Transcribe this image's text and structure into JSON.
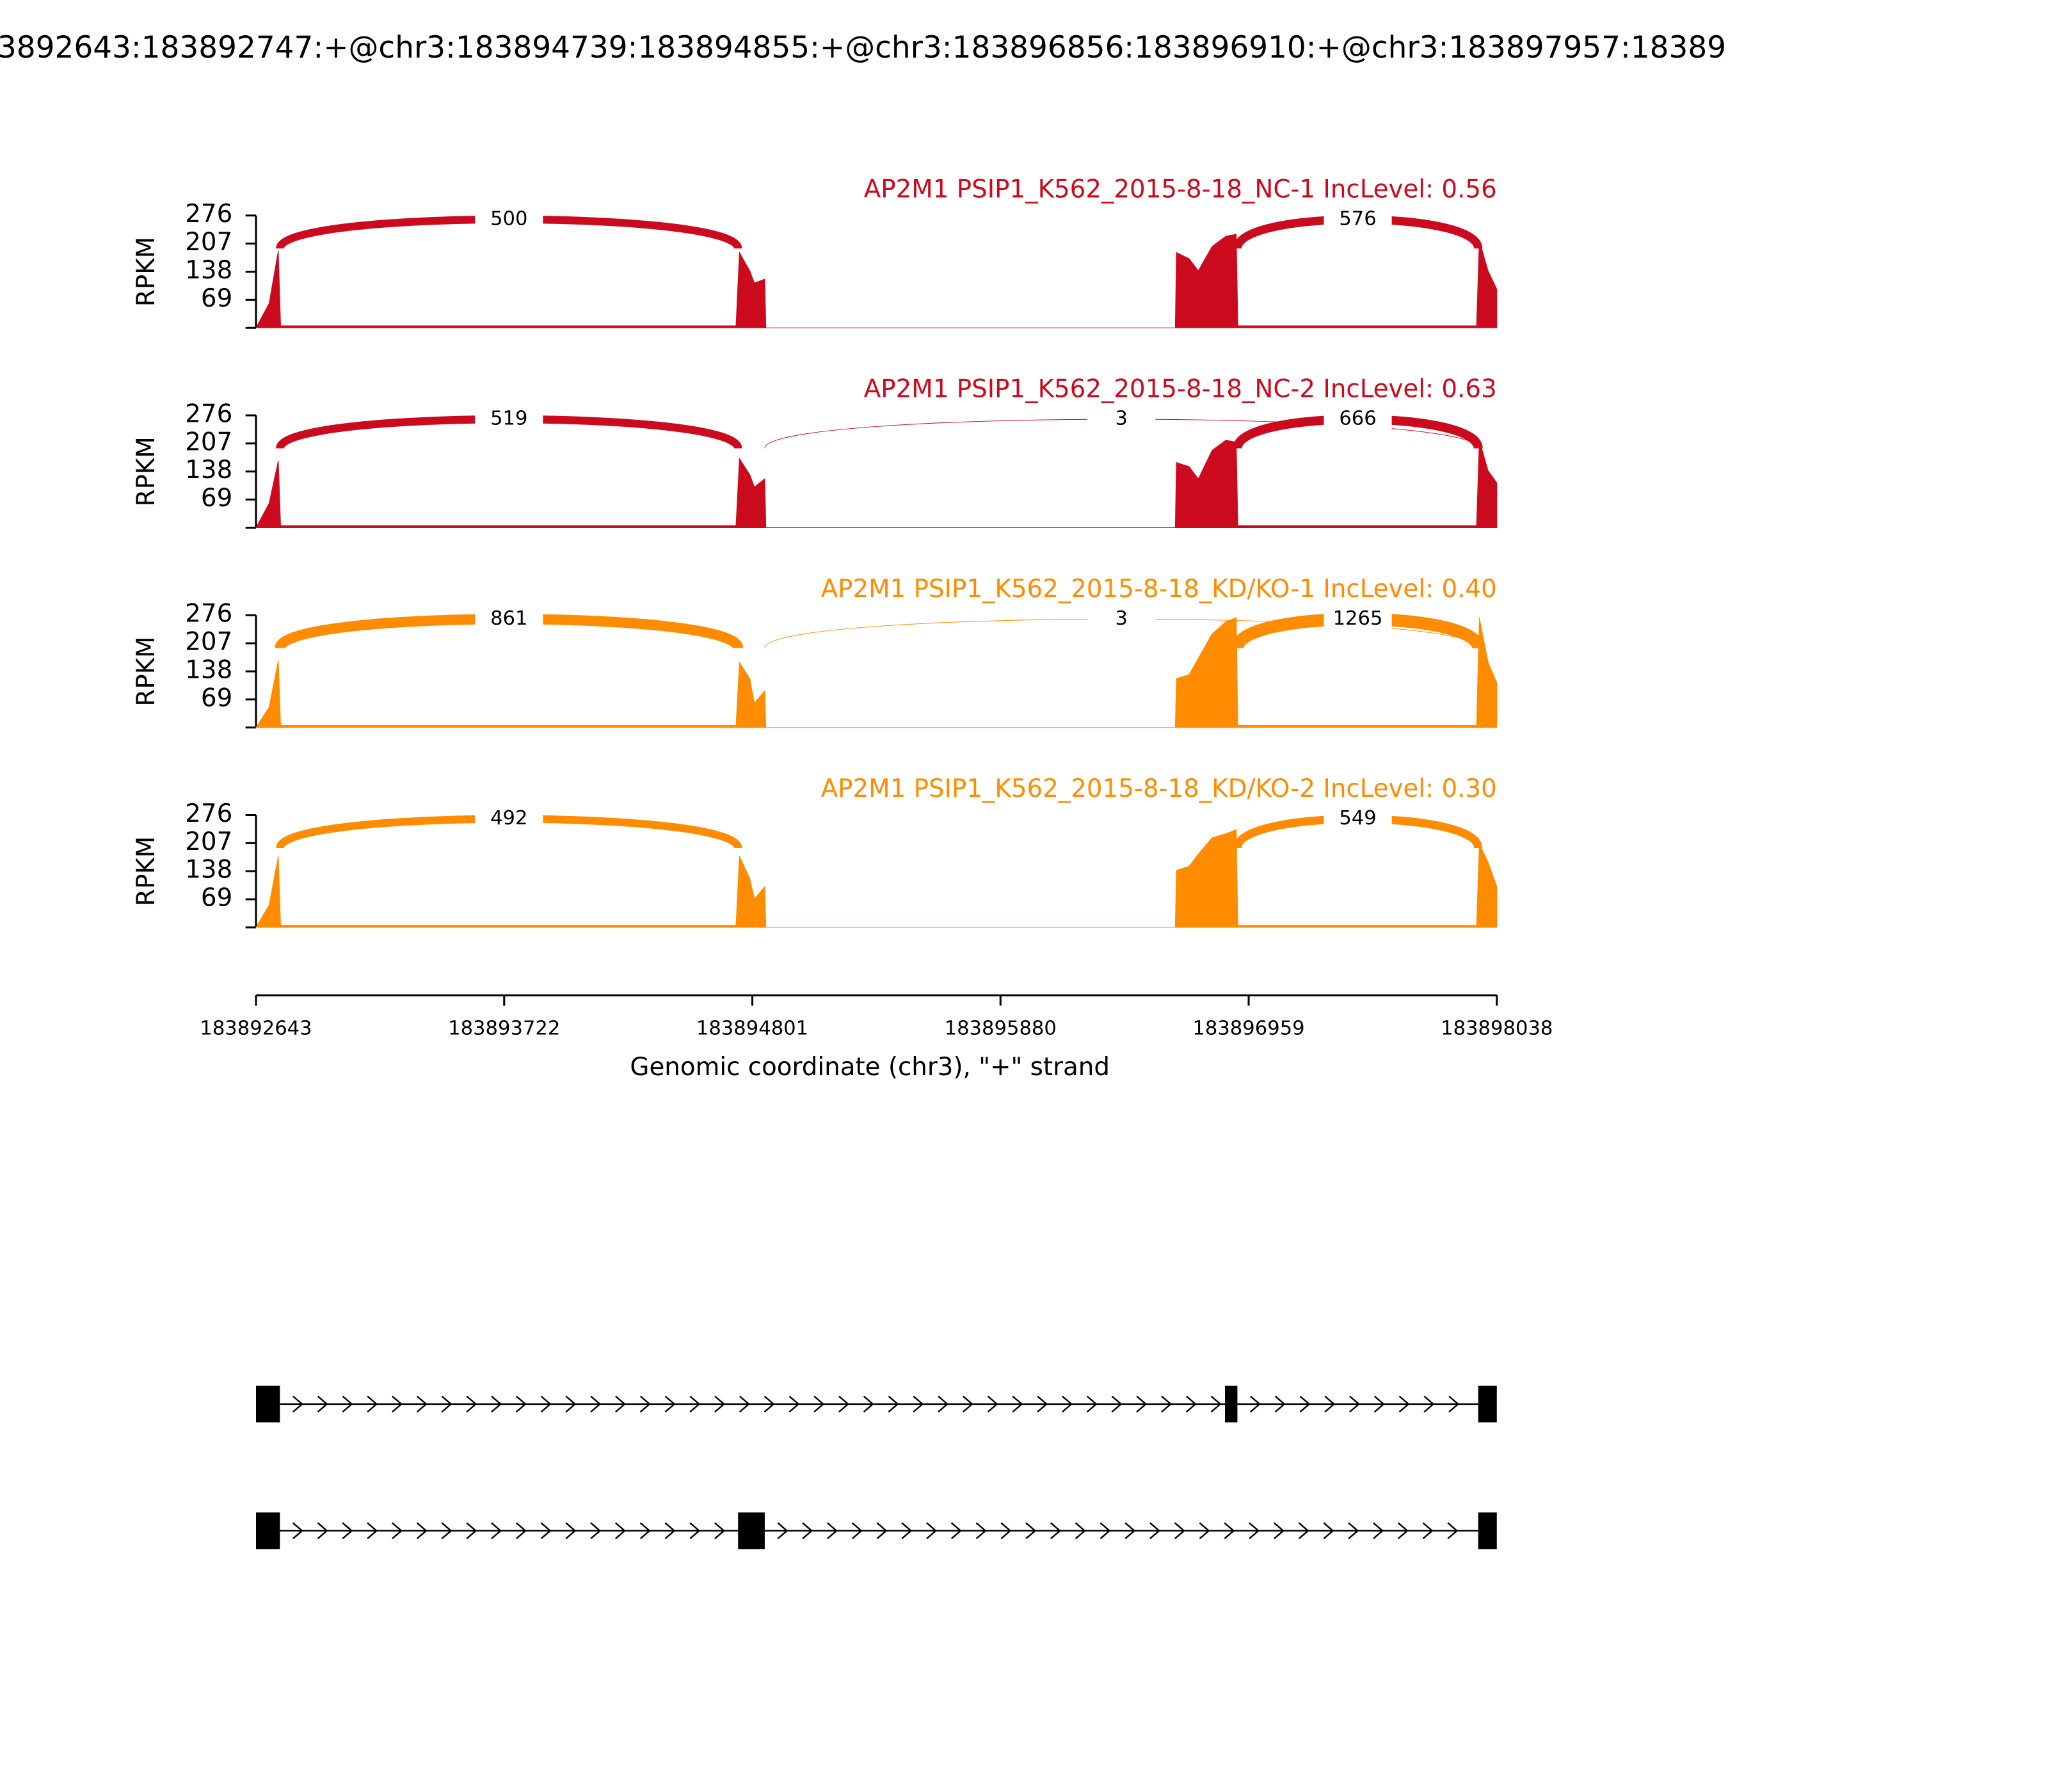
{
  "chart_data": {
    "type": "sashimi",
    "title": "3892643:183892747:+@chr3:183894739:183894855:+@chr3:183896856:183896910:+@chr3:183897957:18389",
    "xlabel": "Genomic coordinate (chr3), \"+\" strand",
    "xlim": [
      183892643,
      183898038
    ],
    "xticks": [
      183892643,
      183893722,
      183894801,
      183895880,
      183896959,
      183898038
    ],
    "coverage_x": [
      183892643,
      183892700,
      183892740,
      183892750,
      183894730,
      183894745,
      183894790,
      183894810,
      183894855,
      183894860,
      183896640,
      183896645,
      183896700,
      183896740,
      183896800,
      183896860,
      183896905,
      183896912,
      183897950,
      183897962,
      183898000,
      183898038
    ],
    "panels": [
      {
        "title": "AP2M1 PSIP1_K562_2015-8-18_NC-1 IncLevel: 0.56",
        "color": "#cc0a1e",
        "ylabel": "RPKM",
        "ylim": [
          0,
          276
        ],
        "yticks": [
          69,
          138,
          207,
          276
        ],
        "coverage": [
          0,
          60,
          190,
          5,
          5,
          185,
          140,
          110,
          120,
          0,
          0,
          185,
          170,
          140,
          200,
          225,
          230,
          5,
          5,
          215,
          140,
          95
        ],
        "junctions": [
          {
            "from": 183892747,
            "to": 183894739,
            "count": 500
          },
          {
            "from": 183896910,
            "to": 183897957,
            "count": 576
          }
        ]
      },
      {
        "title": "AP2M1 PSIP1_K562_2015-8-18_NC-2 IncLevel: 0.63",
        "color": "#cc0a1e",
        "ylabel": "RPKM",
        "ylim": [
          0,
          276
        ],
        "yticks": [
          69,
          138,
          207,
          276
        ],
        "coverage": [
          0,
          60,
          165,
          5,
          5,
          170,
          130,
          100,
          120,
          0,
          0,
          160,
          150,
          120,
          190,
          215,
          210,
          5,
          5,
          215,
          140,
          110
        ],
        "junctions": [
          {
            "from": 183892747,
            "to": 183894739,
            "count": 519
          },
          {
            "from": 183894855,
            "to": 183897957,
            "count": 3
          },
          {
            "from": 183896910,
            "to": 183897957,
            "count": 666
          }
        ]
      },
      {
        "title": "AP2M1 PSIP1_K562_2015-8-18_KD/KO-1 IncLevel: 0.40",
        "color": "#ff8c00",
        "ylabel": "RPKM",
        "ylim": [
          0,
          276
        ],
        "yticks": [
          69,
          138,
          207,
          276
        ],
        "coverage": [
          0,
          50,
          165,
          5,
          5,
          160,
          120,
          60,
          90,
          0,
          0,
          120,
          130,
          170,
          230,
          260,
          270,
          5,
          5,
          270,
          160,
          110
        ],
        "junctions": [
          {
            "from": 183892747,
            "to": 183894739,
            "count": 861
          },
          {
            "from": 183894855,
            "to": 183897957,
            "count": 3
          },
          {
            "from": 183896910,
            "to": 183897957,
            "count": 1265
          }
        ]
      },
      {
        "title": "AP2M1 PSIP1_K562_2015-8-18_KD/KO-2 IncLevel: 0.30",
        "color": "#ff8c00",
        "ylabel": "RPKM",
        "ylim": [
          0,
          276
        ],
        "yticks": [
          69,
          138,
          207,
          276
        ],
        "coverage": [
          0,
          55,
          175,
          5,
          5,
          175,
          120,
          70,
          100,
          0,
          0,
          140,
          150,
          180,
          220,
          230,
          240,
          5,
          5,
          205,
          160,
          100
        ],
        "junctions": [
          {
            "from": 183892747,
            "to": 183894739,
            "count": 492
          },
          {
            "from": 183896910,
            "to": 183897957,
            "count": 549
          }
        ]
      }
    ],
    "transcripts": [
      {
        "exons": [
          [
            183892643,
            183892747
          ],
          [
            183896856,
            183896910
          ],
          [
            183897957,
            183898038
          ]
        ]
      },
      {
        "exons": [
          [
            183892643,
            183892747
          ],
          [
            183894739,
            183894855
          ],
          [
            183897957,
            183898038
          ]
        ]
      }
    ]
  }
}
